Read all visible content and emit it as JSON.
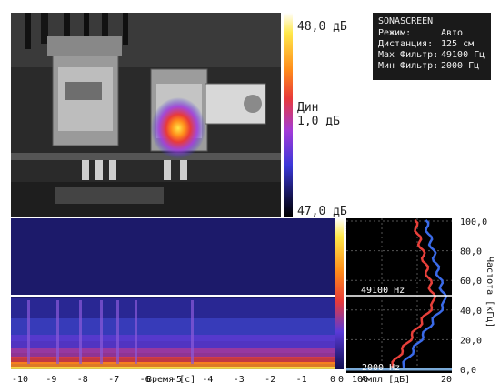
{
  "device": {
    "name": "SONASCREEN"
  },
  "settings": [
    {
      "label": "Режим:",
      "value": "Авто"
    },
    {
      "label": "Дистанция:",
      "value": "125 см"
    },
    {
      "label": "Мах Фильтр:",
      "value": "49100 Гц"
    },
    {
      "label": "Мин Фильтр:",
      "value": "2000 Гц"
    }
  ],
  "colorbar": {
    "max_label": "48,0 дБ",
    "min_label": "47,0 дБ",
    "dyn_title": "Дин",
    "dyn_value": "1,0 дБ",
    "colors": [
      "#ffffff",
      "#ffe84a",
      "#ff8c1a",
      "#e83a3a",
      "#a23bd8",
      "#3a38d8",
      "#101040",
      "#000000"
    ]
  },
  "spectrogram": {
    "filter_line_hz": 49100,
    "filter_line_color": "#ffffff",
    "x_ticks": [
      "-10",
      "-9",
      "-8",
      "-7",
      "-6",
      "-5",
      "-4",
      "-3",
      "-2",
      "-1",
      "0"
    ],
    "x_label": "Время [с]",
    "level_scale": {
      "top": "80",
      "bottom": "0"
    }
  },
  "spectrum": {
    "max_filter_label": "49100 Hz",
    "min_filter_label": "2000 Hz",
    "x_ticks": [
      "0",
      "100",
      "20"
    ],
    "x_label": "Ампл [дБ]",
    "y_ticks": [
      "100,0",
      "80,0",
      "60,0",
      "40,0",
      "20,0",
      "0,0"
    ],
    "y_label": "Частота [кГц]",
    "red_color": "#e8403a",
    "blue_color": "#3a6ae8"
  }
}
